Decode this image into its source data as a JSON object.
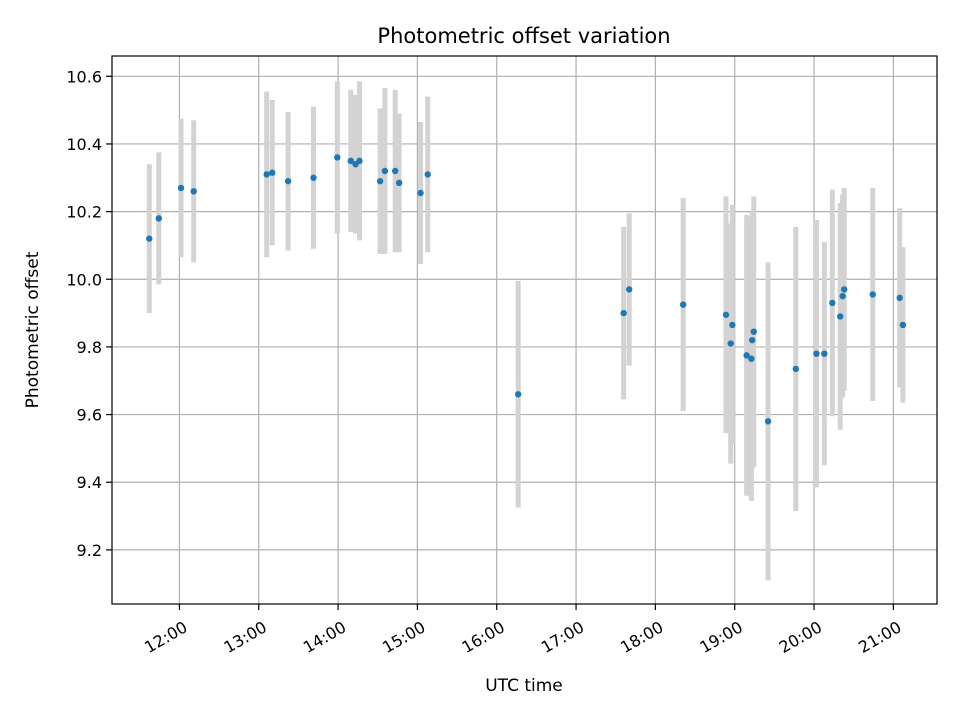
{
  "chart_data": {
    "type": "scatter",
    "title": "Photometric offset variation",
    "xlabel": "UTC time",
    "ylabel": "Photometric offset",
    "x_tick_labels": [
      "12:00",
      "13:00",
      "14:00",
      "15:00",
      "16:00",
      "17:00",
      "18:00",
      "19:00",
      "20:00",
      "21:00"
    ],
    "x_ticks_hours": [
      12,
      13,
      14,
      15,
      16,
      17,
      18,
      19,
      20,
      21
    ],
    "xlim_hours": [
      11.15,
      21.55
    ],
    "y_ticks": [
      9.2,
      9.4,
      9.6,
      9.8,
      10.0,
      10.2,
      10.4,
      10.6
    ],
    "y_tick_labels": [
      "9.2",
      "9.4",
      "9.6",
      "9.8",
      "10.0",
      "10.2",
      "10.4",
      "10.6"
    ],
    "ylim": [
      9.04,
      10.66
    ],
    "grid": true,
    "colors": {
      "points": "#1f77b4",
      "error_bars": "#d3d3d3"
    },
    "points": [
      {
        "t": 11.62,
        "y": 10.12,
        "err": 0.22
      },
      {
        "t": 11.74,
        "y": 10.18,
        "err": 0.195
      },
      {
        "t": 12.02,
        "y": 10.27,
        "err": 0.205
      },
      {
        "t": 12.18,
        "y": 10.26,
        "err": 0.21
      },
      {
        "t": 13.1,
        "y": 10.31,
        "err": 0.245
      },
      {
        "t": 13.17,
        "y": 10.315,
        "err": 0.215
      },
      {
        "t": 13.37,
        "y": 10.29,
        "err": 0.205
      },
      {
        "t": 13.69,
        "y": 10.3,
        "err": 0.21
      },
      {
        "t": 13.99,
        "y": 10.36,
        "err": 0.225
      },
      {
        "t": 14.16,
        "y": 10.35,
        "err": 0.21
      },
      {
        "t": 14.22,
        "y": 10.34,
        "err": 0.205
      },
      {
        "t": 14.27,
        "y": 10.35,
        "err": 0.235
      },
      {
        "t": 14.53,
        "y": 10.29,
        "err": 0.215
      },
      {
        "t": 14.59,
        "y": 10.32,
        "err": 0.245
      },
      {
        "t": 14.72,
        "y": 10.32,
        "err": 0.24
      },
      {
        "t": 14.77,
        "y": 10.285,
        "err": 0.205
      },
      {
        "t": 15.04,
        "y": 10.255,
        "err": 0.21
      },
      {
        "t": 15.13,
        "y": 10.31,
        "err": 0.23
      },
      {
        "t": 16.27,
        "y": 9.66,
        "err": 0.335
      },
      {
        "t": 17.6,
        "y": 9.9,
        "err": 0.255
      },
      {
        "t": 17.67,
        "y": 9.97,
        "err": 0.225
      },
      {
        "t": 18.35,
        "y": 9.925,
        "err": 0.315
      },
      {
        "t": 18.89,
        "y": 9.895,
        "err": 0.35
      },
      {
        "t": 18.95,
        "y": 9.81,
        "err": 0.355
      },
      {
        "t": 18.97,
        "y": 9.865,
        "err": 0.355
      },
      {
        "t": 19.15,
        "y": 9.775,
        "err": 0.415
      },
      {
        "t": 19.21,
        "y": 9.765,
        "err": 0.42
      },
      {
        "t": 19.22,
        "y": 9.82,
        "err": 0.38
      },
      {
        "t": 19.24,
        "y": 9.845,
        "err": 0.4
      },
      {
        "t": 19.42,
        "y": 9.58,
        "err": 0.47
      },
      {
        "t": 19.77,
        "y": 9.735,
        "err": 0.42
      },
      {
        "t": 20.03,
        "y": 9.78,
        "err": 0.395
      },
      {
        "t": 20.13,
        "y": 9.78,
        "err": 0.33
      },
      {
        "t": 20.23,
        "y": 9.93,
        "err": 0.335
      },
      {
        "t": 20.33,
        "y": 9.89,
        "err": 0.335
      },
      {
        "t": 20.36,
        "y": 9.95,
        "err": 0.3
      },
      {
        "t": 20.38,
        "y": 9.97,
        "err": 0.3
      },
      {
        "t": 20.74,
        "y": 9.955,
        "err": 0.315
      },
      {
        "t": 21.08,
        "y": 9.945,
        "err": 0.265
      },
      {
        "t": 21.12,
        "y": 9.865,
        "err": 0.23
      }
    ]
  }
}
